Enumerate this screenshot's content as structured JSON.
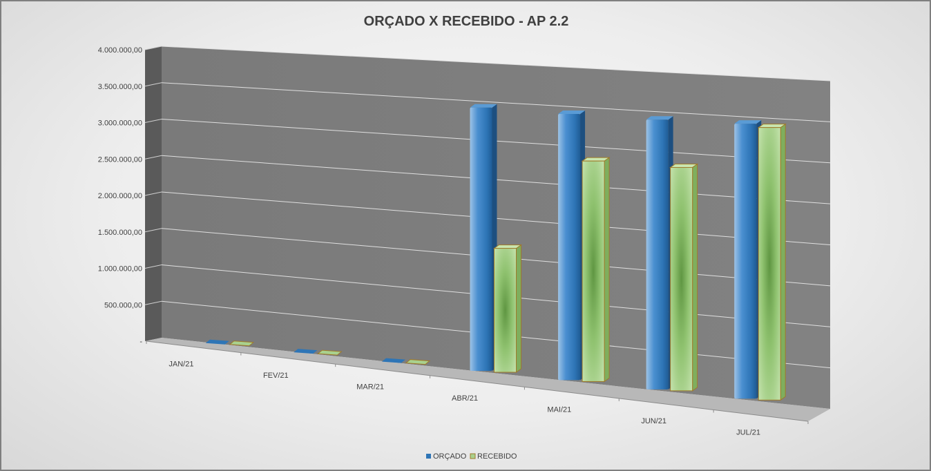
{
  "chart_data": {
    "type": "bar",
    "title": "ORÇADO X RECEBIDO - AP 2.2",
    "categories": [
      "JAN/21",
      "FEV/21",
      "MAR/21",
      "ABR/21",
      "MAI/21",
      "JUN/21",
      "JUL/21"
    ],
    "series": [
      {
        "name": "ORÇADO",
        "values": [
          0,
          0,
          0,
          3400000,
          3380000,
          3370000,
          3380000
        ],
        "color": "#2e75b6"
      },
      {
        "name": "RECEBIDO",
        "values": [
          0,
          0,
          0,
          1600000,
          2800000,
          2790000,
          3350000
        ],
        "color": "#a9d18e"
      }
    ],
    "ylim": [
      0,
      4000000
    ],
    "y_ticks": [
      "-",
      "500.000,00",
      "1.000.000,00",
      "1.500.000,00",
      "2.000.000,00",
      "2.500.000,00",
      "3.000.000,00",
      "3.500.000,00",
      "4.000.000,00"
    ],
    "grid": true,
    "style": "3d-clustered-column",
    "legend_position": "bottom"
  }
}
